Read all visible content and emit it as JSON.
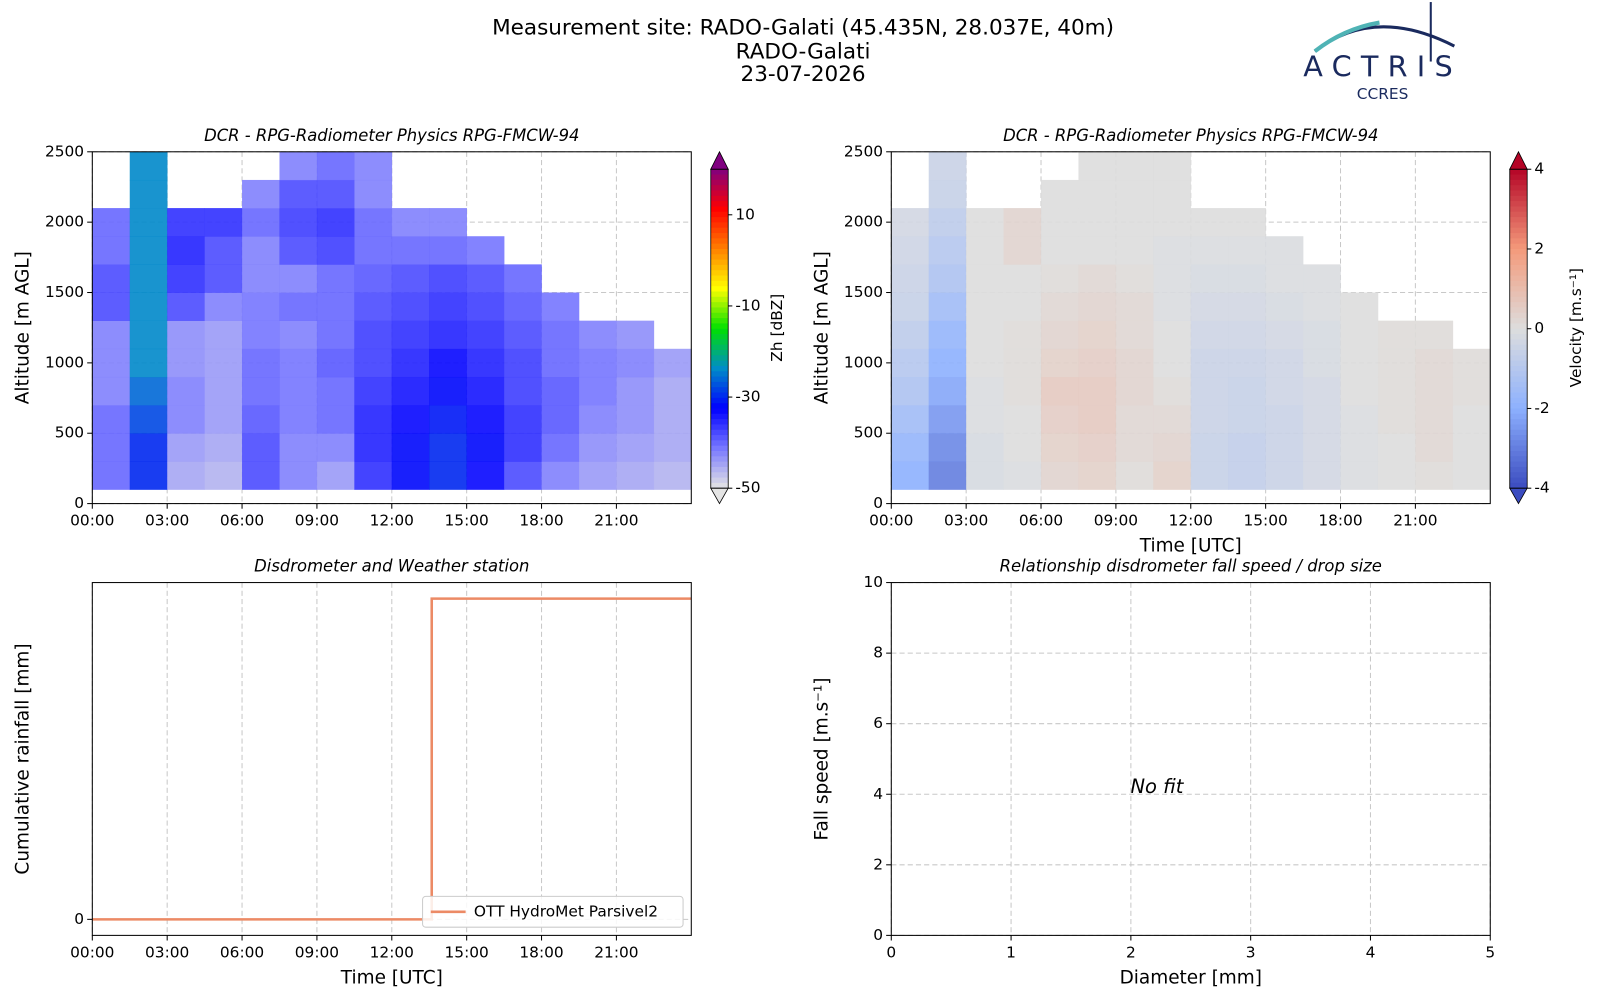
{
  "header": {
    "lines": [
      "Measurement site: RADO-Galati (45.435N, 28.037E, 40m)",
      "RADO-Galati",
      "23-07-2026"
    ]
  },
  "logo": {
    "name": "ACTRIS",
    "sub": "CCRES"
  },
  "chart_data": [
    {
      "type": "heatmap",
      "title": "DCR - RPG-Radiometer Physics RPG-FMCW-94",
      "y_label": "Altitude [m AGL]",
      "colorbar_label": "Zh [dBZ]",
      "xlim": [
        0,
        24
      ],
      "ylim": [
        0,
        2500
      ],
      "xticks": [
        {
          "value": 0,
          "label": "00:00"
        },
        {
          "value": 3,
          "label": "03:00"
        },
        {
          "value": 6,
          "label": "06:00"
        },
        {
          "value": 9,
          "label": "09:00"
        },
        {
          "value": 12,
          "label": "12:00"
        },
        {
          "value": 15,
          "label": "15:00"
        },
        {
          "value": 18,
          "label": "18:00"
        },
        {
          "value": 21,
          "label": "21:00"
        }
      ],
      "yticks": [
        0,
        500,
        1000,
        1500,
        2000,
        2500
      ],
      "grid": true,
      "zlim": [
        -50,
        20
      ],
      "cticks": [
        -50,
        -30,
        -10,
        10
      ],
      "colormap": [
        "#e4e4e4",
        "#7878ff",
        "#0000ff",
        "#008cc8",
        "#00e000",
        "#ffff00",
        "#ff8000",
        "#ff0000",
        "#800080"
      ],
      "x_edges": [
        0,
        1.5,
        3,
        4.5,
        6,
        7.5,
        9,
        10.5,
        12,
        13.5,
        15,
        16.5,
        18,
        19.5,
        21,
        22.5,
        24
      ],
      "y_edges": [
        100,
        300,
        500,
        700,
        900,
        1100,
        1300,
        1500,
        1700,
        1900,
        2100,
        2300,
        2500
      ],
      "z": [
        [
          -40,
          -30,
          -45,
          -46,
          -38,
          -42,
          -44,
          -36,
          -32,
          -30,
          -33,
          -38,
          -42,
          -44,
          -45,
          -46
        ],
        [
          -40,
          -30,
          -44,
          -45,
          -38,
          -42,
          -42,
          -35,
          -32,
          -30,
          -32,
          -36,
          -40,
          -43,
          -44,
          -45
        ],
        [
          -40,
          -28,
          -42,
          -44,
          -39,
          -41,
          -40,
          -35,
          -33,
          -31,
          -33,
          -36,
          -39,
          -42,
          -43,
          -45
        ],
        [
          -42,
          -26,
          -42,
          -44,
          -40,
          -41,
          -40,
          -36,
          -34,
          -32,
          -34,
          -37,
          -39,
          -41,
          -43,
          -45
        ],
        [
          -42,
          -24,
          -43,
          -44,
          -40,
          -41,
          -39,
          -37,
          -35,
          -33,
          -35,
          -37,
          -40,
          -41,
          -42,
          -44
        ],
        [
          -42,
          -24,
          -43,
          -44,
          -41,
          -42,
          -40,
          -37,
          -36,
          -35,
          -36,
          -38,
          -40,
          -42,
          -43,
          null
        ],
        [
          -38,
          -24,
          -38,
          -42,
          -41,
          -40,
          -40,
          -38,
          -37,
          -36,
          -37,
          -39,
          -41,
          null,
          null,
          null
        ],
        [
          -38,
          -24,
          -36,
          -38,
          -42,
          -42,
          -40,
          -39,
          -38,
          -37,
          -38,
          -40,
          null,
          null,
          null,
          null
        ],
        [
          -40,
          -24,
          -35,
          -38,
          -42,
          -38,
          -37,
          -40,
          -40,
          -40,
          -41,
          null,
          null,
          null,
          null,
          null
        ],
        [
          -40,
          -24,
          -36,
          -36,
          -40,
          -37,
          -36,
          -40,
          -42,
          -42,
          null,
          null,
          null,
          null,
          null,
          null
        ],
        [
          null,
          -24,
          null,
          null,
          -42,
          -38,
          -38,
          -42,
          null,
          null,
          null,
          null,
          null,
          null,
          null,
          null
        ],
        [
          null,
          -24,
          null,
          null,
          null,
          -42,
          -40,
          -42,
          null,
          null,
          null,
          null,
          null,
          null,
          null,
          null
        ]
      ]
    },
    {
      "type": "heatmap",
      "title": "DCR - RPG-Radiometer Physics RPG-FMCW-94",
      "x_label": "Time [UTC]",
      "y_label": "Altitude [m AGL]",
      "colorbar_label": "Velocity [m.s⁻¹]",
      "xlim": [
        0,
        24
      ],
      "ylim": [
        0,
        2500
      ],
      "xticks": [
        {
          "value": 0,
          "label": "00:00"
        },
        {
          "value": 3,
          "label": "03:00"
        },
        {
          "value": 6,
          "label": "06:00"
        },
        {
          "value": 9,
          "label": "09:00"
        },
        {
          "value": 12,
          "label": "12:00"
        },
        {
          "value": 15,
          "label": "15:00"
        },
        {
          "value": 18,
          "label": "18:00"
        },
        {
          "value": 21,
          "label": "21:00"
        }
      ],
      "yticks": [
        0,
        500,
        1000,
        1500,
        2000,
        2500
      ],
      "grid": true,
      "zlim": [
        -4,
        4
      ],
      "cticks": [
        -4,
        -2,
        0,
        2,
        4
      ],
      "colormap": [
        "#3b4cc0",
        "#8db0fe",
        "#dddddd",
        "#f49a7b",
        "#b40426"
      ],
      "x_edges": [
        0,
        1.5,
        3,
        4.5,
        6,
        7.5,
        9,
        10.5,
        12,
        13.5,
        15,
        16.5,
        18,
        19.5,
        21,
        22.5,
        24
      ],
      "y_edges": [
        100,
        300,
        500,
        700,
        900,
        1100,
        1300,
        1500,
        1700,
        1900,
        2100,
        2300,
        2500
      ],
      "z": [
        [
          -2.0,
          -3.0,
          -0.2,
          -0.1,
          0.3,
          0.4,
          0.1,
          0.4,
          -0.6,
          -0.7,
          -0.5,
          -0.3,
          -0.1,
          0.0,
          0.1,
          0.0
        ],
        [
          -1.8,
          -2.8,
          -0.2,
          0.0,
          0.4,
          0.5,
          0.2,
          0.3,
          -0.6,
          -0.7,
          -0.5,
          -0.3,
          -0.1,
          0.0,
          0.2,
          0.0
        ],
        [
          -1.5,
          -2.5,
          -0.1,
          0.0,
          0.5,
          0.6,
          0.2,
          0.2,
          -0.5,
          -0.6,
          -0.5,
          -0.3,
          -0.1,
          0.1,
          0.2,
          0.0
        ],
        [
          -1.2,
          -2.2,
          -0.1,
          0.1,
          0.6,
          0.6,
          0.3,
          0.1,
          -0.5,
          -0.6,
          -0.4,
          -0.3,
          0.0,
          0.1,
          0.2,
          0.1
        ],
        [
          -1.0,
          -2.0,
          0.0,
          0.1,
          0.4,
          0.5,
          0.3,
          0.0,
          -0.5,
          -0.5,
          -0.4,
          -0.2,
          0.0,
          0.1,
          0.2,
          0.1
        ],
        [
          -0.8,
          -1.8,
          0.0,
          0.1,
          0.3,
          0.4,
          0.2,
          0.0,
          -0.4,
          -0.4,
          -0.3,
          -0.2,
          0.0,
          0.1,
          0.1,
          null
        ],
        [
          -0.6,
          -1.5,
          0.0,
          0.0,
          0.2,
          0.3,
          0.2,
          -0.1,
          -0.3,
          -0.3,
          -0.2,
          -0.1,
          0.0,
          null,
          null,
          null
        ],
        [
          -0.5,
          -1.2,
          0.0,
          0.0,
          0.1,
          0.2,
          0.1,
          -0.1,
          -0.2,
          -0.2,
          -0.1,
          -0.1,
          null,
          null,
          null,
          null
        ],
        [
          -0.4,
          -1.0,
          0.0,
          0.3,
          0.0,
          0.0,
          0.0,
          -0.1,
          -0.1,
          -0.1,
          -0.1,
          null,
          null,
          null,
          null,
          null
        ],
        [
          -0.3,
          -0.8,
          0.0,
          0.3,
          0.0,
          0.0,
          0.0,
          0.0,
          0.0,
          0.0,
          null,
          null,
          null,
          null,
          null,
          null
        ],
        [
          null,
          -0.6,
          null,
          null,
          0.0,
          0.0,
          0.0,
          0.0,
          null,
          null,
          null,
          null,
          null,
          null,
          null,
          null
        ],
        [
          null,
          -0.5,
          null,
          null,
          null,
          0.0,
          0.0,
          0.0,
          null,
          null,
          null,
          null,
          null,
          null,
          null,
          null
        ]
      ]
    },
    {
      "type": "line",
      "title": "Disdrometer and Weather station",
      "x_label": "Time [UTC]",
      "y_label": "Cumulative rainfall [mm]",
      "xlim": [
        0,
        24
      ],
      "ylim": [
        -0.01,
        0.21
      ],
      "xticks": [
        {
          "value": 0,
          "label": "00:00"
        },
        {
          "value": 3,
          "label": "03:00"
        },
        {
          "value": 6,
          "label": "06:00"
        },
        {
          "value": 9,
          "label": "09:00"
        },
        {
          "value": 12,
          "label": "12:00"
        },
        {
          "value": 15,
          "label": "15:00"
        },
        {
          "value": 18,
          "label": "18:00"
        },
        {
          "value": 21,
          "label": "21:00"
        }
      ],
      "yticks": [
        0
      ],
      "grid": true,
      "legend": "lower right",
      "series": [
        {
          "name": "OTT HydroMet Parsivel2",
          "color": "#ec8a65",
          "x": [
            0,
            13.6,
            13.6,
            24
          ],
          "values": [
            0,
            0,
            0.2,
            0.2
          ]
        }
      ]
    },
    {
      "type": "scatter",
      "title": "Relationship disdrometer fall speed / drop size",
      "x_label": "Diameter [mm]",
      "y_label": "Fall speed [m.s⁻¹]",
      "annotation": "No fit",
      "xlim": [
        0,
        5
      ],
      "ylim": [
        0,
        10
      ],
      "xticks": [
        0,
        1,
        2,
        3,
        4,
        5
      ],
      "yticks": [
        0,
        2,
        4,
        6,
        8,
        10
      ],
      "grid": true
    }
  ]
}
